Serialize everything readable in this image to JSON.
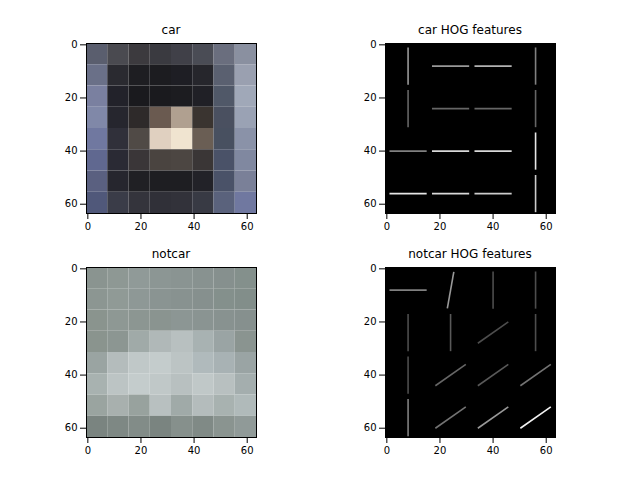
{
  "chart_data": [
    {
      "type": "image",
      "title": "car",
      "xlim": [
        -0.5,
        63.5
      ],
      "ylim": [
        63.5,
        -0.5
      ],
      "xticks": [
        0,
        20,
        40,
        60
      ],
      "yticks": [
        0,
        20,
        40,
        60
      ],
      "cells": [
        [
          "#5a5e6e",
          "#4a4a50",
          "#3c3a3e",
          "#3a3a40",
          "#404048",
          "#4a4c55",
          "#6a6e7e",
          "#8a90a0"
        ],
        [
          "#6a7088",
          "#2a2a30",
          "#1e1e22",
          "#1c1c20",
          "#1e1e24",
          "#26262c",
          "#5a6070",
          "#9aa0b0"
        ],
        [
          "#7a80a0",
          "#22222a",
          "#1a1a1e",
          "#1a1a1e",
          "#1c1c20",
          "#202026",
          "#505868",
          "#a0a8b8"
        ],
        [
          "#8088a8",
          "#26262e",
          "#2e2a2a",
          "#6a5a50",
          "#b0a090",
          "#3a3430",
          "#4a5060",
          "#9aa2b4"
        ],
        [
          "#7078a0",
          "#30303a",
          "#504a46",
          "#e0d0c0",
          "#f0e4d0",
          "#6a5e54",
          "#485060",
          "#8a92a8"
        ],
        [
          "#606890",
          "#2a2a34",
          "#3a3638",
          "#4a4440",
          "#4c4642",
          "#3a3636",
          "#4a5268",
          "#8088a0"
        ],
        [
          "#5a6080",
          "#26262e",
          "#202024",
          "#1e1e22",
          "#1e1e22",
          "#222228",
          "#4a5268",
          "#7a8098"
        ],
        [
          "#50587a",
          "#3a3c48",
          "#34343c",
          "#303038",
          "#32323a",
          "#383a44",
          "#5a627c",
          "#7078a0"
        ]
      ]
    },
    {
      "type": "hog",
      "title": "car HOG features",
      "xlim": [
        -0.5,
        63.5
      ],
      "ylim": [
        63.5,
        -0.5
      ],
      "xticks": [
        0,
        20,
        40,
        60
      ],
      "yticks": [
        0,
        20,
        40,
        60
      ],
      "gradients": [
        {
          "x": 8,
          "y": 8,
          "angle": 90,
          "strength": 0.6
        },
        {
          "x": 24,
          "y": 8,
          "angle": 0,
          "strength": 0.6
        },
        {
          "x": 40,
          "y": 8,
          "angle": 0,
          "strength": 0.7
        },
        {
          "x": 56,
          "y": 8,
          "angle": 90,
          "strength": 0.5
        },
        {
          "x": 8,
          "y": 24,
          "angle": 90,
          "strength": 0.4
        },
        {
          "x": 24,
          "y": 24,
          "angle": 0,
          "strength": 0.4
        },
        {
          "x": 40,
          "y": 24,
          "angle": 0,
          "strength": 0.4
        },
        {
          "x": 56,
          "y": 24,
          "angle": 90,
          "strength": 0.4
        },
        {
          "x": 8,
          "y": 40,
          "angle": 0,
          "strength": 0.5
        },
        {
          "x": 24,
          "y": 40,
          "angle": 0,
          "strength": 0.85
        },
        {
          "x": 40,
          "y": 40,
          "angle": 0,
          "strength": 0.85
        },
        {
          "x": 56,
          "y": 40,
          "angle": 90,
          "strength": 0.9
        },
        {
          "x": 8,
          "y": 56,
          "angle": 0,
          "strength": 0.9
        },
        {
          "x": 24,
          "y": 56,
          "angle": 0,
          "strength": 0.85
        },
        {
          "x": 40,
          "y": 56,
          "angle": 0,
          "strength": 0.8
        },
        {
          "x": 56,
          "y": 56,
          "angle": 90,
          "strength": 0.8
        }
      ]
    },
    {
      "type": "image",
      "title": "notcar",
      "xlim": [
        -0.5,
        63.5
      ],
      "ylim": [
        63.5,
        -0.5
      ],
      "xticks": [
        0,
        20,
        40,
        60
      ],
      "yticks": [
        0,
        20,
        40,
        60
      ],
      "cells": [
        [
          "#8a9490",
          "#8e9894",
          "#909a98",
          "#8c9694",
          "#8a9492",
          "#889290",
          "#86908e",
          "#84908c"
        ],
        [
          "#8c9692",
          "#909a96",
          "#8e9896",
          "#8a9492",
          "#889290",
          "#86908e",
          "#84908c",
          "#828e8a"
        ],
        [
          "#8a948e",
          "#8e9894",
          "#8c9692",
          "#8a9490",
          "#8c9694",
          "#8a9492",
          "#889290",
          "#86908e"
        ],
        [
          "#8a948e",
          "#8c9692",
          "#a0aaa8",
          "#b0b8b8",
          "#b8c0c0",
          "#a8b2b2",
          "#9aa4a4",
          "#8a9490"
        ],
        [
          "#9aa4a2",
          "#b4bcbc",
          "#c0c8c8",
          "#c4cccc",
          "#bcc4c4",
          "#b0babc",
          "#a8b2b4",
          "#9aa4a4"
        ],
        [
          "#a8b2b0",
          "#bcc4c4",
          "#c4cccc",
          "#c0c8c8",
          "#b8c0c0",
          "#c0c8c8",
          "#b8c0c0",
          "#a4aeae"
        ],
        [
          "#9aa4a0",
          "#a8b0ae",
          "#98a29e",
          "#b8c0c0",
          "#a0aaa8",
          "#b4bcbc",
          "#a8b2b0",
          "#b0baba"
        ],
        [
          "#7a8480",
          "#7e8884",
          "#828c88",
          "#7a8480",
          "#86908c",
          "#808a86",
          "#8a9490",
          "#909a98"
        ]
      ]
    },
    {
      "type": "hog",
      "title": "notcar HOG features",
      "xlim": [
        -0.5,
        63.5
      ],
      "ylim": [
        63.5,
        -0.5
      ],
      "xticks": [
        0,
        20,
        40,
        60
      ],
      "yticks": [
        0,
        20,
        40,
        60
      ],
      "gradients": [
        {
          "x": 8,
          "y": 8,
          "angle": 0,
          "strength": 0.5
        },
        {
          "x": 24,
          "y": 8,
          "angle": 80,
          "strength": 0.6
        },
        {
          "x": 40,
          "y": 8,
          "angle": 90,
          "strength": 0.3
        },
        {
          "x": 56,
          "y": 8,
          "angle": 90,
          "strength": 0.3
        },
        {
          "x": 8,
          "y": 24,
          "angle": 90,
          "strength": 0.3
        },
        {
          "x": 24,
          "y": 24,
          "angle": 90,
          "strength": 0.35
        },
        {
          "x": 40,
          "y": 24,
          "angle": 35,
          "strength": 0.3
        },
        {
          "x": 56,
          "y": 24,
          "angle": 90,
          "strength": 0.3
        },
        {
          "x": 8,
          "y": 40,
          "angle": 90,
          "strength": 0.3
        },
        {
          "x": 24,
          "y": 40,
          "angle": 35,
          "strength": 0.4
        },
        {
          "x": 40,
          "y": 40,
          "angle": 35,
          "strength": 0.35
        },
        {
          "x": 56,
          "y": 40,
          "angle": 35,
          "strength": 0.45
        },
        {
          "x": 8,
          "y": 56,
          "angle": 90,
          "strength": 0.5
        },
        {
          "x": 24,
          "y": 56,
          "angle": 35,
          "strength": 0.45
        },
        {
          "x": 40,
          "y": 56,
          "angle": 35,
          "strength": 0.6
        },
        {
          "x": 56,
          "y": 56,
          "angle": 35,
          "strength": 0.95
        }
      ]
    }
  ]
}
